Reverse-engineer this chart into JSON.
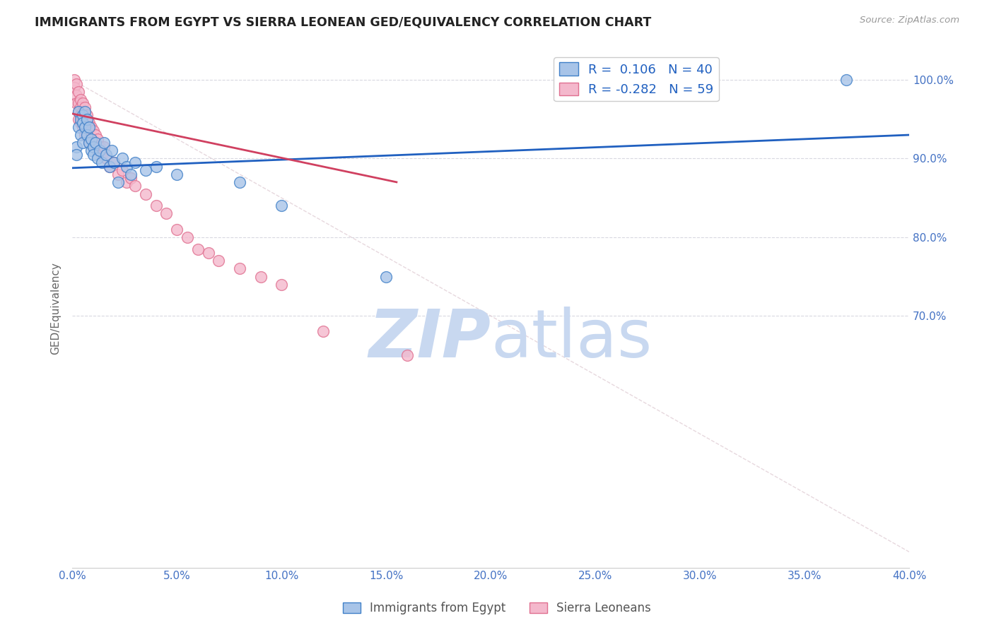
{
  "title": "IMMIGRANTS FROM EGYPT VS SIERRA LEONEAN GED/EQUIVALENCY CORRELATION CHART",
  "source": "Source: ZipAtlas.com",
  "ylabel": "GED/Equivalency",
  "legend_blue_label": "Immigrants from Egypt",
  "legend_pink_label": "Sierra Leoneans",
  "legend_blue_r": "0.106",
  "legend_blue_n": "40",
  "legend_pink_r": "-0.282",
  "legend_pink_n": "59",
  "blue_fill": "#a8c4e8",
  "pink_fill": "#f4b8cc",
  "blue_edge": "#4080c8",
  "pink_edge": "#e07090",
  "blue_line": "#2060c0",
  "pink_line": "#d04060",
  "ref_line": "#c8d0e0",
  "watermark_color": "#c8d8f0",
  "background_color": "#ffffff",
  "xlim": [
    0.0,
    0.4
  ],
  "ylim": [
    0.38,
    1.04
  ],
  "x_ticks": [
    0.0,
    0.05,
    0.1,
    0.15,
    0.2,
    0.25,
    0.3,
    0.35,
    0.4
  ],
  "y_ticks": [
    1.0,
    0.9,
    0.8,
    0.7
  ],
  "blue_points_x": [
    0.002,
    0.002,
    0.003,
    0.003,
    0.004,
    0.004,
    0.005,
    0.005,
    0.005,
    0.006,
    0.006,
    0.007,
    0.007,
    0.008,
    0.008,
    0.009,
    0.009,
    0.01,
    0.01,
    0.011,
    0.012,
    0.013,
    0.014,
    0.015,
    0.016,
    0.018,
    0.019,
    0.02,
    0.022,
    0.024,
    0.026,
    0.028,
    0.03,
    0.035,
    0.04,
    0.05,
    0.08,
    0.1,
    0.15,
    0.37
  ],
  "blue_points_y": [
    0.915,
    0.905,
    0.96,
    0.94,
    0.95,
    0.93,
    0.955,
    0.945,
    0.92,
    0.96,
    0.94,
    0.95,
    0.93,
    0.94,
    0.92,
    0.925,
    0.91,
    0.915,
    0.905,
    0.92,
    0.9,
    0.91,
    0.895,
    0.92,
    0.905,
    0.89,
    0.91,
    0.895,
    0.87,
    0.9,
    0.89,
    0.88,
    0.895,
    0.885,
    0.89,
    0.88,
    0.87,
    0.84,
    0.75,
    1.0
  ],
  "pink_points_x": [
    0.001,
    0.001,
    0.002,
    0.002,
    0.002,
    0.003,
    0.003,
    0.003,
    0.003,
    0.004,
    0.004,
    0.004,
    0.004,
    0.005,
    0.005,
    0.005,
    0.005,
    0.006,
    0.006,
    0.006,
    0.006,
    0.007,
    0.007,
    0.007,
    0.008,
    0.008,
    0.008,
    0.009,
    0.009,
    0.01,
    0.01,
    0.011,
    0.011,
    0.012,
    0.012,
    0.013,
    0.014,
    0.015,
    0.016,
    0.018,
    0.02,
    0.022,
    0.024,
    0.026,
    0.028,
    0.03,
    0.035,
    0.04,
    0.045,
    0.05,
    0.055,
    0.06,
    0.065,
    0.07,
    0.08,
    0.09,
    0.1,
    0.12,
    0.16
  ],
  "pink_points_y": [
    1.0,
    0.99,
    0.995,
    0.98,
    0.97,
    0.985,
    0.97,
    0.96,
    0.95,
    0.975,
    0.965,
    0.955,
    0.945,
    0.97,
    0.96,
    0.95,
    0.94,
    0.965,
    0.95,
    0.94,
    0.93,
    0.955,
    0.945,
    0.93,
    0.945,
    0.935,
    0.92,
    0.94,
    0.925,
    0.935,
    0.92,
    0.93,
    0.915,
    0.925,
    0.91,
    0.915,
    0.905,
    0.915,
    0.9,
    0.89,
    0.895,
    0.88,
    0.885,
    0.87,
    0.875,
    0.865,
    0.855,
    0.84,
    0.83,
    0.81,
    0.8,
    0.785,
    0.78,
    0.77,
    0.76,
    0.75,
    0.74,
    0.68,
    0.65
  ],
  "blue_line_x": [
    0.0,
    0.4
  ],
  "blue_line_y": [
    0.888,
    0.93
  ],
  "pink_line_x": [
    0.0,
    0.155
  ],
  "pink_line_y": [
    0.957,
    0.87
  ]
}
